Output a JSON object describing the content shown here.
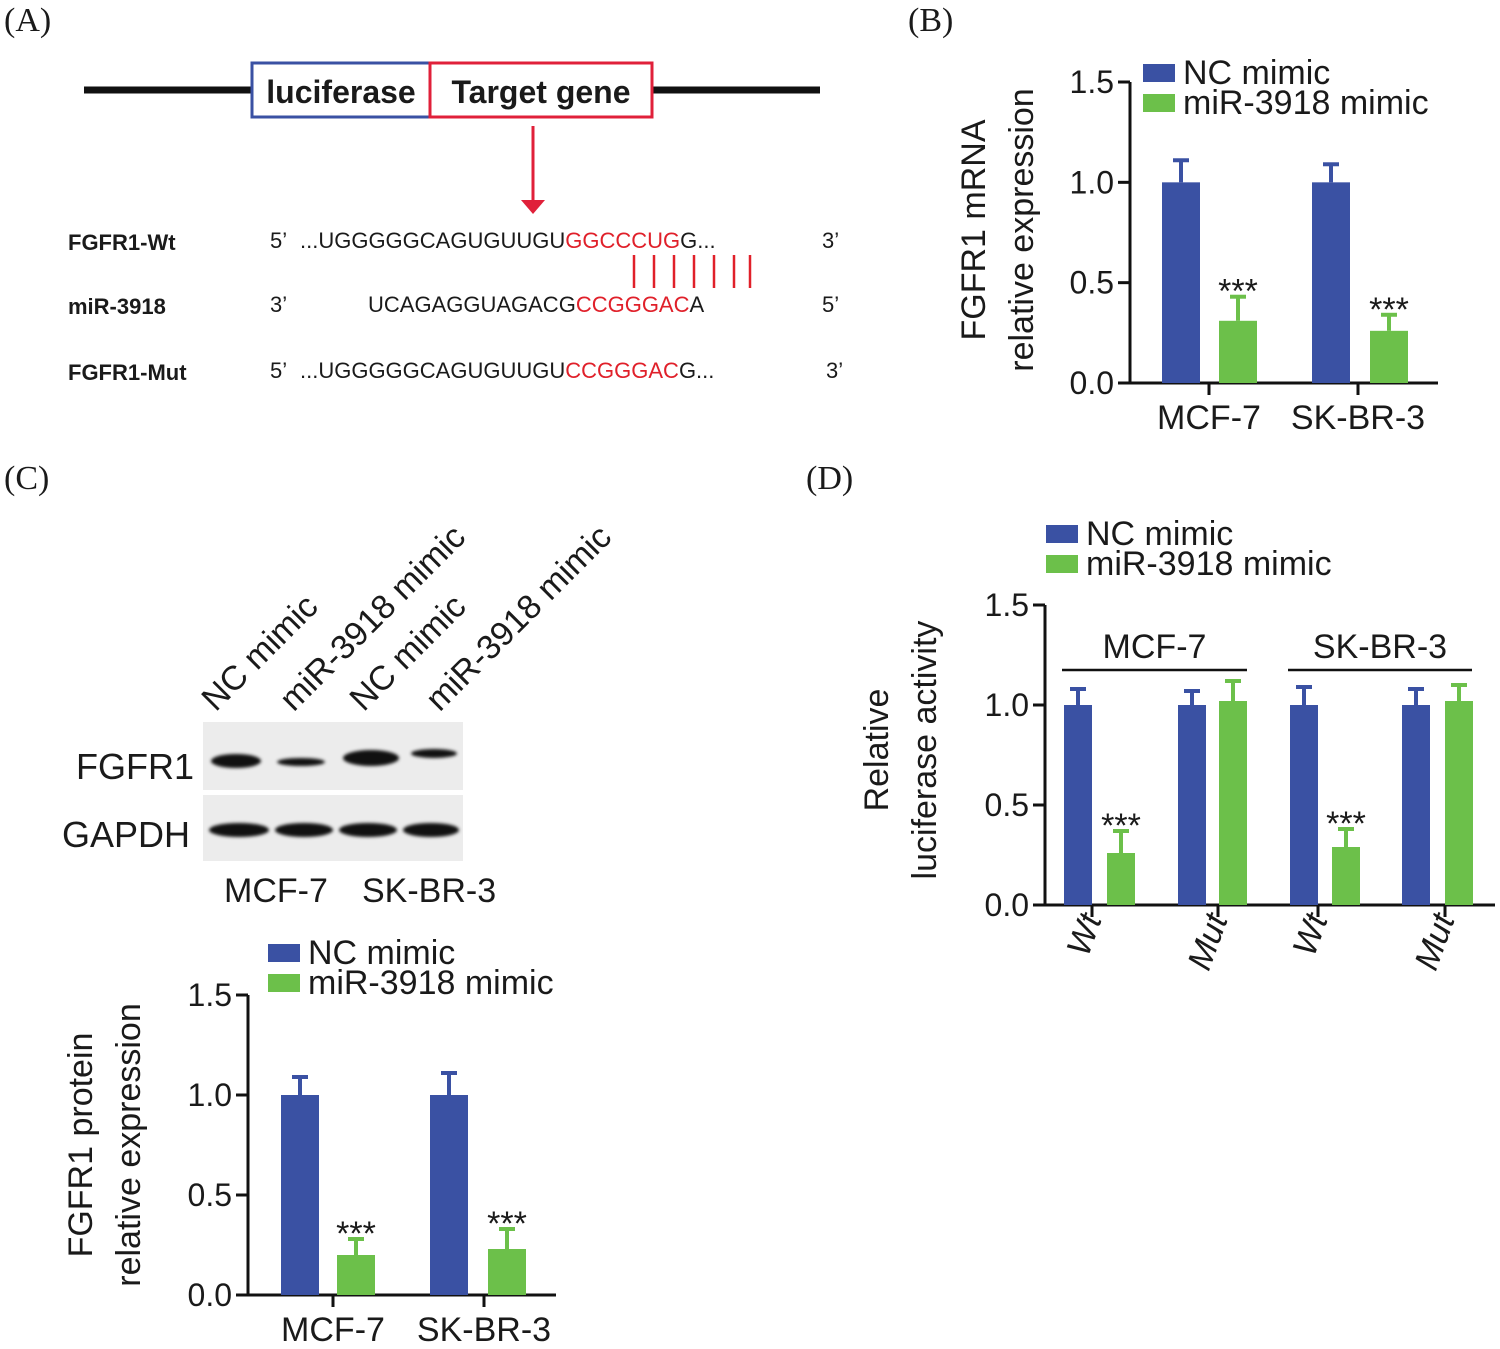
{
  "panels": {
    "a": "(A)",
    "b": "(B)",
    "c": "(C)",
    "d": "(D)"
  },
  "colors": {
    "nc": "#3a51a3",
    "mir": "#6cc04a",
    "red": "#e0203a",
    "seq_red": "#e0202a",
    "blue_box": "#3a51a3"
  },
  "panel_a": {
    "box_luciferase": "luciferase",
    "box_target": "Target gene",
    "rows": [
      {
        "label": "FGFR1-Wt",
        "end5": "5’",
        "prefix": "...UGGGGGCAGUGUUGU",
        "red": "GGCCCUG",
        "suffix": "G...",
        "end3": "3’"
      },
      {
        "label": "miR-3918",
        "end5": "3’",
        "prefix": "UCAGAGGUAGACG",
        "red": "CCGGGAC",
        "suffix": "A",
        "end3": "5’"
      },
      {
        "label": "FGFR1-Mut",
        "end5": "5’",
        "prefix": "...UGGGGGCAGUGUUGU",
        "red": "CCGGGAC",
        "suffix": "G...",
        "end3": "3’"
      }
    ]
  },
  "blot": {
    "lanes": [
      "NC mimic",
      "miR-3918 mimic",
      "NC mimic",
      "miR-3918 mimic"
    ],
    "rows": [
      "FGFR1",
      "GAPDH"
    ],
    "cell_lines": [
      "MCF-7",
      "SK-BR-3"
    ]
  },
  "chart_data": [
    {
      "id": "B",
      "type": "bar",
      "ylabel": [
        "FGFR1 mRNA",
        "relative expression"
      ],
      "categories": [
        "MCF-7",
        "SK-BR-3"
      ],
      "legend": [
        "NC mimic",
        "miR-3918 mimic"
      ],
      "ylim": [
        0,
        1.5
      ],
      "yticks": [
        "0.0",
        "0.5",
        "1.0",
        "1.5"
      ],
      "series": [
        {
          "name": "NC mimic",
          "values": [
            1.0,
            1.0
          ],
          "errors": [
            0.11,
            0.09
          ]
        },
        {
          "name": "miR-3918 mimic",
          "values": [
            0.31,
            0.26
          ],
          "errors": [
            0.12,
            0.08
          ]
        }
      ],
      "annotations": [
        "***",
        "***"
      ]
    },
    {
      "id": "C",
      "type": "bar",
      "ylabel": [
        "FGFR1 protein",
        "relative expression"
      ],
      "categories": [
        "MCF-7",
        "SK-BR-3"
      ],
      "legend": [
        "NC mimic",
        "miR-3918 mimic"
      ],
      "ylim": [
        0,
        1.5
      ],
      "yticks": [
        "0.0",
        "0.5",
        "1.0",
        "1.5"
      ],
      "series": [
        {
          "name": "NC mimic",
          "values": [
            1.0,
            1.0
          ],
          "errors": [
            0.09,
            0.11
          ]
        },
        {
          "name": "miR-3918 mimic",
          "values": [
            0.2,
            0.23
          ],
          "errors": [
            0.08,
            0.1
          ]
        }
      ],
      "annotations": [
        "***",
        "***"
      ]
    },
    {
      "id": "D",
      "type": "bar",
      "ylabel": [
        "Relative",
        "luciferase activity"
      ],
      "groups": [
        "MCF-7",
        "SK-BR-3"
      ],
      "categories": [
        "Wt",
        "Mut",
        "Wt",
        "Mut"
      ],
      "legend": [
        "NC mimic",
        "miR-3918 mimic"
      ],
      "ylim": [
        0,
        1.5
      ],
      "yticks": [
        "0.0",
        "0.5",
        "1.0",
        "1.5"
      ],
      "series": [
        {
          "name": "NC mimic",
          "values": [
            1.0,
            1.0,
            1.0,
            1.0
          ],
          "errors": [
            0.08,
            0.07,
            0.09,
            0.08
          ]
        },
        {
          "name": "miR-3918 mimic",
          "values": [
            0.26,
            1.02,
            0.29,
            1.02
          ],
          "errors": [
            0.11,
            0.1,
            0.09,
            0.08
          ]
        }
      ],
      "annotations": [
        "***",
        "",
        "***",
        ""
      ]
    }
  ]
}
